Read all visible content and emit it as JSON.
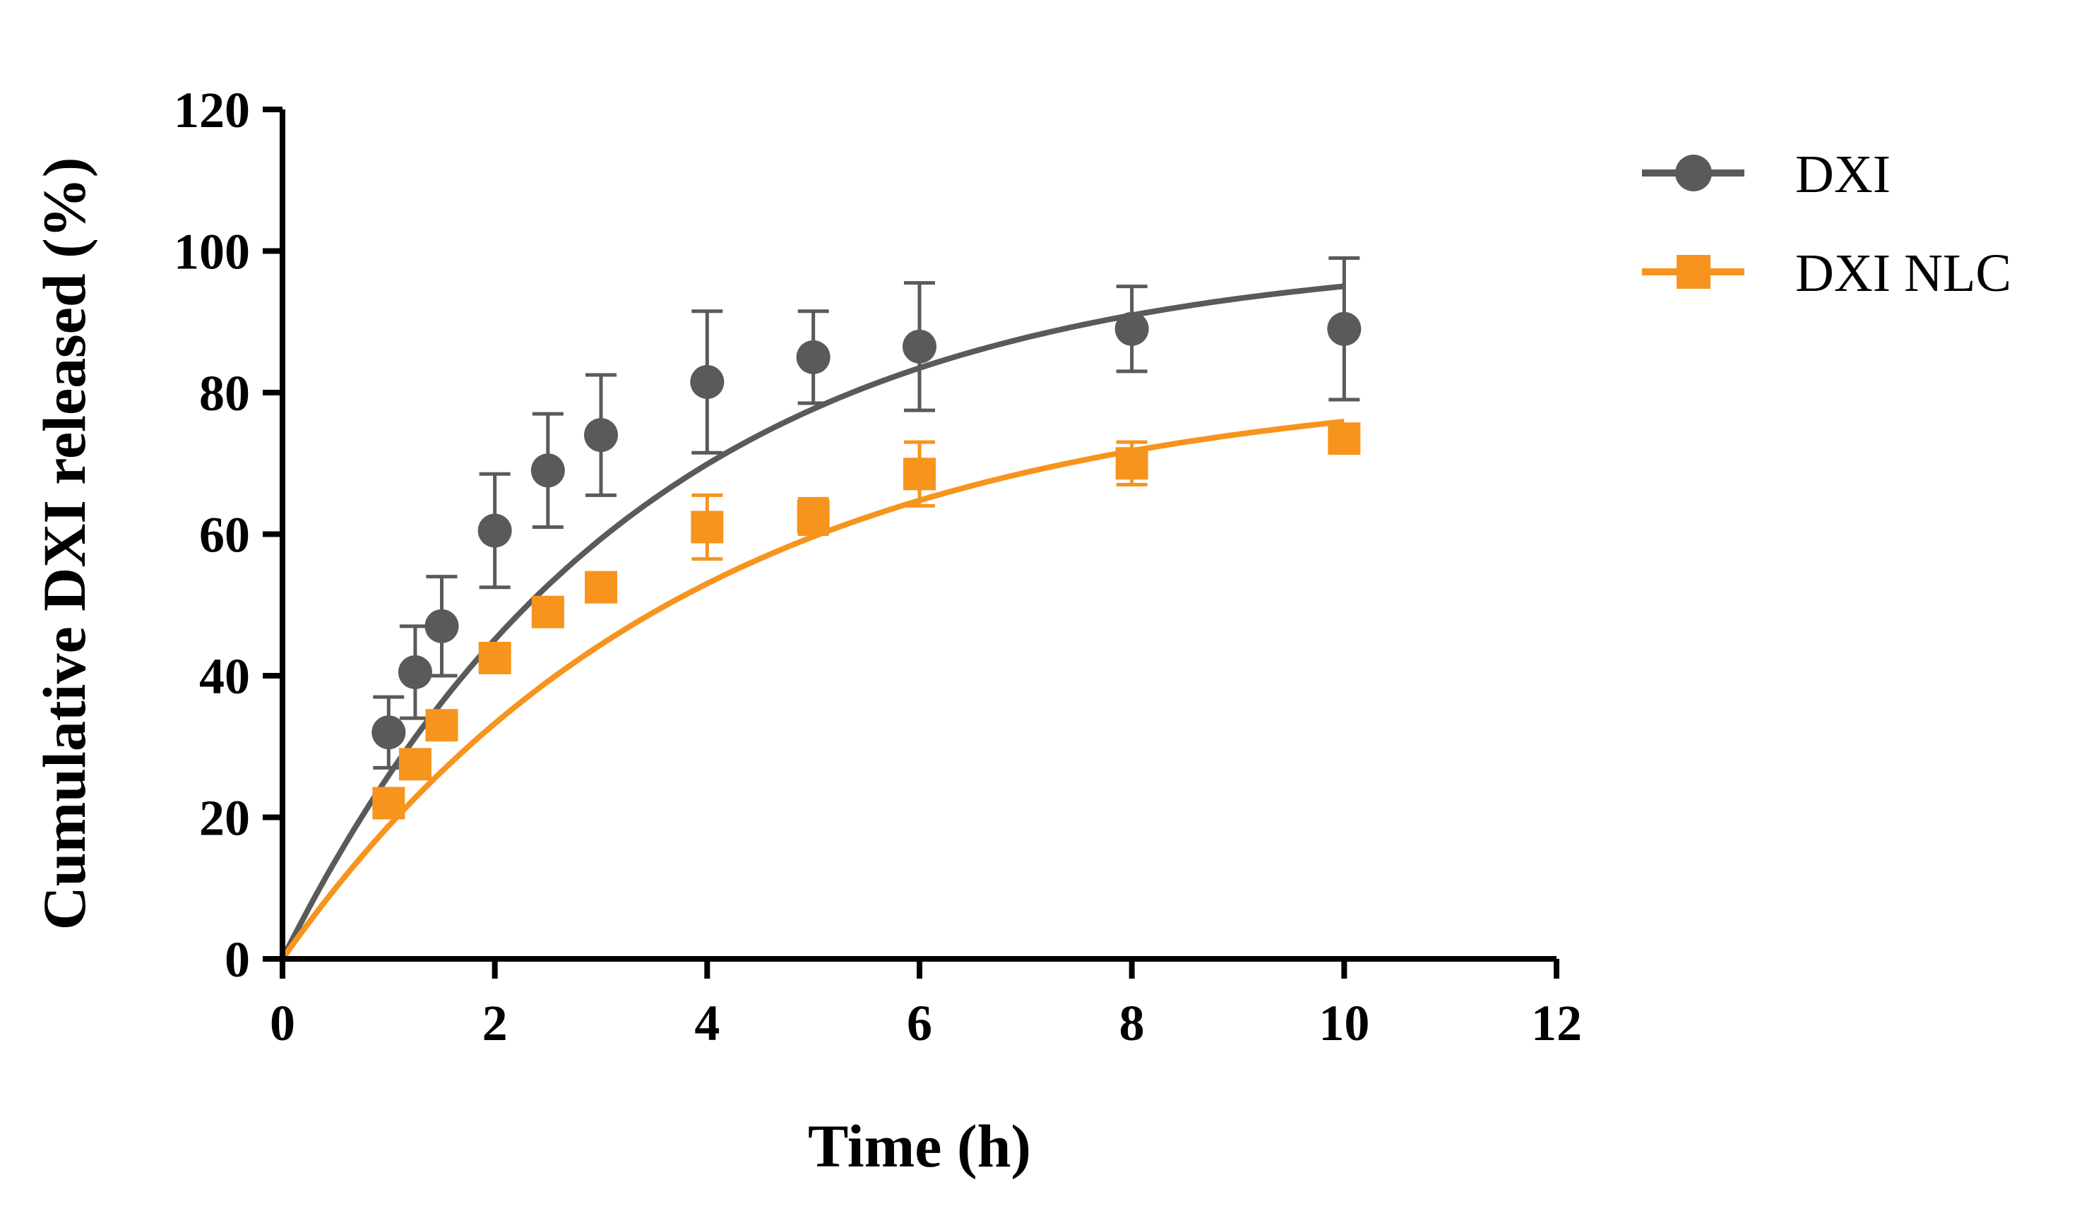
{
  "chart_data": {
    "type": "scatter",
    "xlabel": "Time (h)",
    "ylabel": "Cumulative DXI released (%)",
    "xlim": [
      0,
      12
    ],
    "ylim": [
      0,
      120
    ],
    "xticks": [
      "0",
      "2",
      "4",
      "6",
      "8",
      "10",
      "12"
    ],
    "yticks": [
      "0",
      "20",
      "40",
      "60",
      "80",
      "100",
      "120"
    ],
    "grid": false,
    "legend_position": "top-right",
    "series": [
      {
        "name": "DXI",
        "color": "#5a5a5a",
        "marker": "circle",
        "x": [
          1,
          1.25,
          1.5,
          2,
          2.5,
          3,
          4,
          5,
          6,
          8,
          10
        ],
        "y": [
          32,
          40.5,
          47,
          60.5,
          69,
          74,
          81.5,
          85,
          86.5,
          89,
          89
        ],
        "error": [
          5,
          6.5,
          7,
          8,
          8,
          8.5,
          10,
          6.5,
          9,
          6,
          10
        ],
        "fit": {
          "model": "first-order",
          "ymax": 100,
          "k": 0.3
        }
      },
      {
        "name": "DXI NLC",
        "color": "#f7941d",
        "marker": "square",
        "x": [
          1,
          1.25,
          1.5,
          2,
          2.5,
          3,
          4,
          5,
          6,
          8,
          10
        ],
        "y": [
          22,
          27.5,
          33,
          42.5,
          49,
          52.5,
          61,
          62.5,
          68.5,
          70,
          73.5
        ],
        "error": [
          1.5,
          1.5,
          1.5,
          2,
          2,
          2,
          4.5,
          2.5,
          4.5,
          3,
          1.5
        ],
        "fit": {
          "model": "first-order",
          "ymax": 82,
          "k": 0.26
        }
      }
    ]
  }
}
